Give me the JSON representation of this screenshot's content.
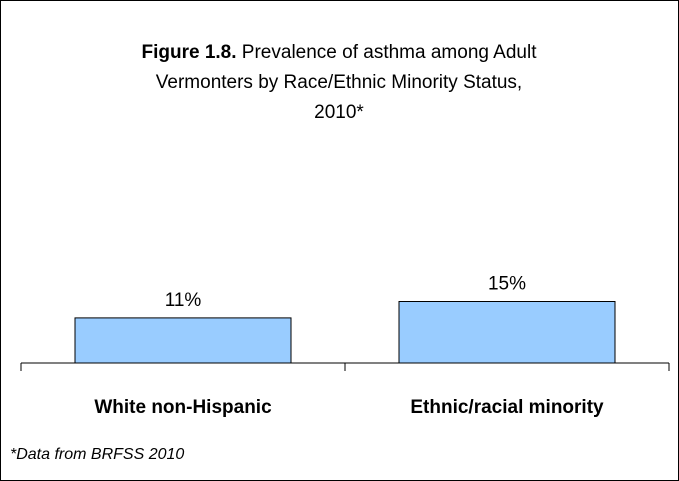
{
  "chart_data": {
    "type": "bar",
    "title_bold": "Figure 1.8.",
    "title_rest_line1": " Prevalence of asthma among Adult",
    "title_line2": "Vermonters by Race/Ethnic Minority Status,",
    "title_line3": "2010*",
    "categories": [
      "White non-Hispanic",
      "Ethnic/racial minority"
    ],
    "values": [
      11,
      15
    ],
    "data_labels": [
      "11%",
      "15%"
    ],
    "value_unit": "%",
    "ylim": [
      0,
      30
    ],
    "grid": false,
    "legend": "none",
    "bar_color": "#99CCFF",
    "bar_border_color": "#000000"
  },
  "footnote": "*Data from BRFSS 2010"
}
